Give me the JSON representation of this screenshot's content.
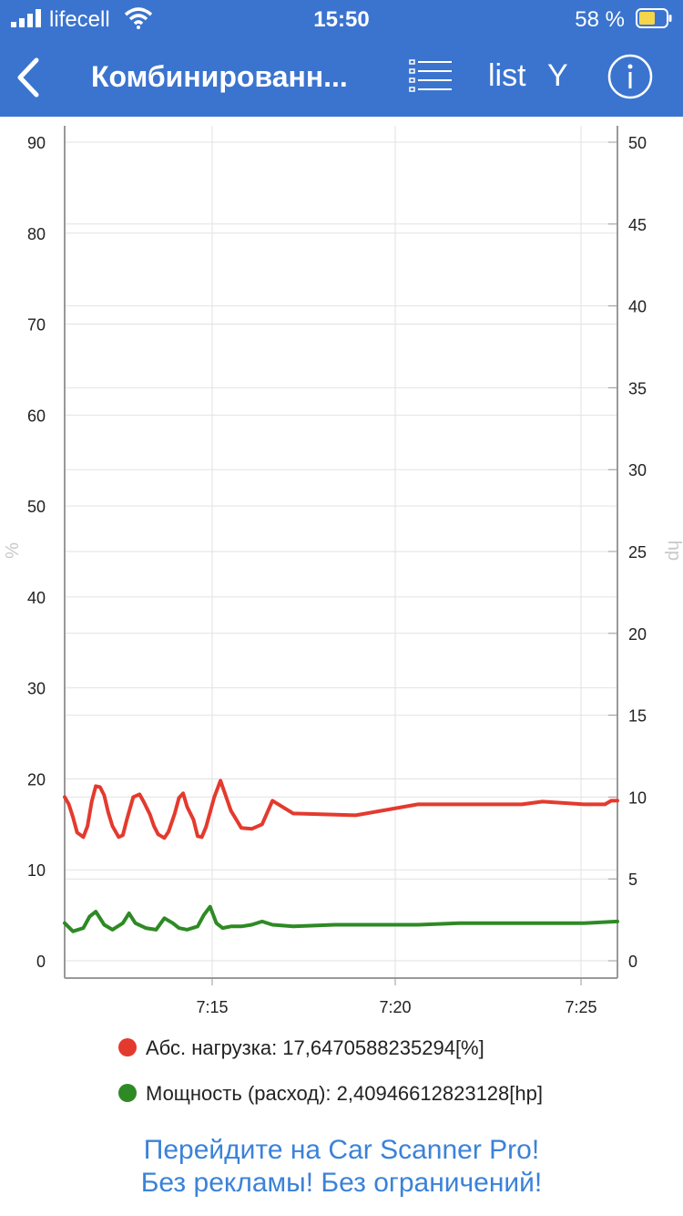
{
  "status_bar": {
    "carrier": "lifecell",
    "time": "15:50",
    "battery_percent": "58 %",
    "icons": [
      "signal-icon",
      "wifi-icon",
      "battery-icon"
    ]
  },
  "nav": {
    "title": "Комбинированн...",
    "list_label": "list",
    "y_label": "Y",
    "icons": [
      "back-chevron-icon",
      "list-icon",
      "info-icon"
    ]
  },
  "colors": {
    "accent": "#3b74cf",
    "series_1": "#e43a2e",
    "series_2": "#2e8a24",
    "promo": "#3b82d8"
  },
  "chart_data": {
    "type": "line",
    "grid": true,
    "legend_placement": "bottom",
    "x_ticks": [
      "7:15",
      "7:20",
      "7:25"
    ],
    "x_range_minutes": [
      7.1,
      7.42
    ],
    "y_left": {
      "label": "%",
      "range": [
        0,
        90
      ],
      "ticks": [
        0,
        10,
        20,
        30,
        40,
        50,
        60,
        70,
        80,
        90
      ]
    },
    "y_right": {
      "label": "hp",
      "range": [
        0,
        50
      ],
      "ticks": [
        0,
        5,
        10,
        15,
        20,
        25,
        30,
        35,
        40,
        45,
        50
      ]
    },
    "series": [
      {
        "name": "Абс. нагрузка",
        "axis": "left",
        "x": [
          7.1,
          7.12,
          7.14,
          7.16,
          7.19,
          7.21,
          7.23,
          7.25,
          7.27,
          7.29,
          7.31,
          7.33,
          7.36,
          7.38,
          7.4,
          7.43,
          7.46,
          7.48,
          7.51,
          7.53,
          7.55,
          7.58,
          7.6,
          7.63,
          7.65,
          7.67,
          7.69,
          7.72,
          7.74,
          7.76,
          7.78,
          7.82,
          7.85,
          7.9,
          7.95,
          8.0,
          8.05,
          8.1,
          8.2,
          8.5,
          8.8,
          9.0,
          9.1,
          9.2,
          9.3,
          9.4,
          9.6,
          9.7,
          9.73,
          9.76
        ],
        "y": [
          18,
          17.2,
          15.8,
          14.1,
          13.6,
          14.8,
          17.5,
          19.2,
          19.1,
          18.2,
          16.3,
          14.8,
          13.6,
          13.8,
          15.6,
          18,
          18.3,
          17.5,
          16.1,
          14.8,
          13.9,
          13.5,
          14.2,
          16.2,
          17.9,
          18.4,
          16.9,
          15.5,
          13.7,
          13.6,
          14.7,
          18,
          19.8,
          16.5,
          14.6,
          14.5,
          15,
          17.6,
          16.2,
          16,
          17.2,
          17.2,
          17.2,
          17.2,
          17.2,
          17.5,
          17.2,
          17.2,
          17.6,
          17.6
        ]
      },
      {
        "name": "Мощность (расход)",
        "axis": "right",
        "x": [
          7.1,
          7.14,
          7.19,
          7.22,
          7.25,
          7.29,
          7.33,
          7.38,
          7.41,
          7.44,
          7.49,
          7.54,
          7.58,
          7.62,
          7.65,
          7.69,
          7.74,
          7.77,
          7.8,
          7.83,
          7.86,
          7.9,
          7.95,
          8.0,
          8.05,
          8.1,
          8.2,
          8.4,
          8.6,
          8.8,
          9.0,
          9.2,
          9.4,
          9.6,
          9.76
        ],
        "y": [
          2.3,
          1.8,
          2.0,
          2.7,
          3.0,
          2.2,
          1.9,
          2.3,
          2.9,
          2.3,
          2.0,
          1.9,
          2.6,
          2.3,
          2.0,
          1.9,
          2.1,
          2.8,
          3.3,
          2.3,
          2.0,
          2.1,
          2.1,
          2.2,
          2.4,
          2.2,
          2.1,
          2.2,
          2.2,
          2.2,
          2.3,
          2.3,
          2.3,
          2.3,
          2.4
        ]
      }
    ]
  },
  "legend": {
    "items": [
      {
        "text": "Абс. нагрузка: 17,6470588235294[%]"
      },
      {
        "text": "Мощность (расход): 2,40946612823128[hp]"
      }
    ]
  },
  "promo": {
    "line1": "Перейдите на Car Scanner Pro!",
    "line2": "Без рекламы! Без ограничений!"
  }
}
